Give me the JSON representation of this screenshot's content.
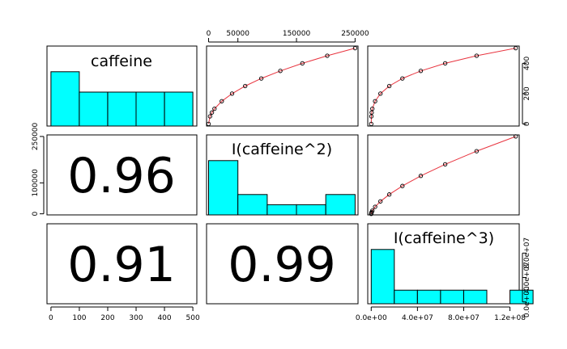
{
  "chart_data": {
    "type": "scatter",
    "matrix_type": "pairs",
    "variables": [
      "caffeine",
      "I(caffeine^2)",
      "I(caffeine^3)"
    ],
    "colors": {
      "histogram_fill": "#00ffff",
      "smooth_line": "#e8333e",
      "points": "#000000",
      "border": "#000000"
    },
    "correlations": [
      {
        "row": 2,
        "col": 1,
        "value": "0.96"
      },
      {
        "row": 3,
        "col": 1,
        "value": "0.91"
      },
      {
        "row": 3,
        "col": 2,
        "value": "0.99"
      }
    ],
    "histograms": [
      {
        "variable": "caffeine",
        "bins": [
          [
            0,
            100,
            1.6
          ],
          [
            100,
            200,
            1.0
          ],
          [
            200,
            300,
            1.0
          ],
          [
            300,
            400,
            1.0
          ],
          [
            400,
            500,
            1.0
          ]
        ]
      },
      {
        "variable": "I(caffeine^2)",
        "bins": [
          [
            0,
            50000,
            1.6
          ],
          [
            50000,
            100000,
            0.6
          ],
          [
            100000,
            150000,
            0.3
          ],
          [
            150000,
            200000,
            0.3
          ],
          [
            200000,
            250000,
            0.6
          ]
        ]
      },
      {
        "variable": "I(caffeine^3)",
        "bins": [
          [
            0,
            20000000,
            1.6
          ],
          [
            20000000,
            40000000,
            0.4
          ],
          [
            40000000,
            60000000,
            0.4
          ],
          [
            60000000,
            80000000,
            0.4
          ],
          [
            80000000,
            100000000,
            0.4
          ],
          [
            100000000,
            120000000,
            0.0
          ],
          [
            120000000,
            140000000,
            0.4
          ]
        ]
      }
    ],
    "scatter_panels": [
      {
        "row": 1,
        "col": 2,
        "x": [
          0,
          2500,
          5625,
          10000,
          22500,
          40000,
          62500,
          90000,
          122500,
          160000,
          202500,
          250000
        ],
        "y": [
          0,
          50,
          75,
          100,
          150,
          200,
          250,
          300,
          350,
          400,
          450,
          500
        ]
      },
      {
        "row": 1,
        "col": 3,
        "x": [
          0,
          125000,
          421875,
          1000000,
          3375000,
          8000000,
          15625000,
          27000000,
          42875000,
          64000000,
          91125000,
          125000000
        ],
        "y": [
          0,
          50,
          75,
          100,
          150,
          200,
          250,
          300,
          350,
          400,
          450,
          500
        ]
      },
      {
        "row": 2,
        "col": 3,
        "x": [
          0,
          125000,
          421875,
          1000000,
          3375000,
          8000000,
          15625000,
          27000000,
          42875000,
          64000000,
          91125000,
          125000000
        ],
        "y": [
          0,
          2500,
          5625,
          10000,
          22500,
          40000,
          62500,
          90000,
          122500,
          160000,
          202500,
          250000
        ]
      }
    ],
    "axes": {
      "caffeine": {
        "range": [
          -14,
          514
        ],
        "ticks": [
          "0",
          "100",
          "200",
          "300",
          "400",
          "500"
        ],
        "tick_values": [
          0,
          100,
          200,
          300,
          400,
          500
        ]
      },
      "caffeine_sq": {
        "range": [
          -3500,
          255000
        ],
        "ticks": [
          "0",
          "50000",
          "150000",
          "250000"
        ],
        "tick_values": [
          0,
          50000,
          150000,
          250000
        ],
        "left_ticks": [
          "0",
          "100000",
          "250000"
        ],
        "left_tick_values": [
          0,
          100000,
          250000
        ]
      },
      "caffeine_cube": {
        "range": [
          -3000000,
          128000000
        ],
        "ticks": [
          "0.0e+00",
          "4.0e+07",
          "8.0e+07",
          "1.2e+08"
        ],
        "tick_values": [
          0,
          40000000,
          80000000,
          120000000
        ]
      },
      "right_y": {
        "ticks": [
          "0",
          "200",
          "400"
        ],
        "tick_values": [
          0,
          200,
          400
        ]
      },
      "right_y_cube": {
        "ticks": [
          "0.0e+00",
          "4.0e+07",
          "8.0e+07"
        ],
        "tick_values": [
          0,
          40000000,
          80000000
        ]
      }
    }
  }
}
